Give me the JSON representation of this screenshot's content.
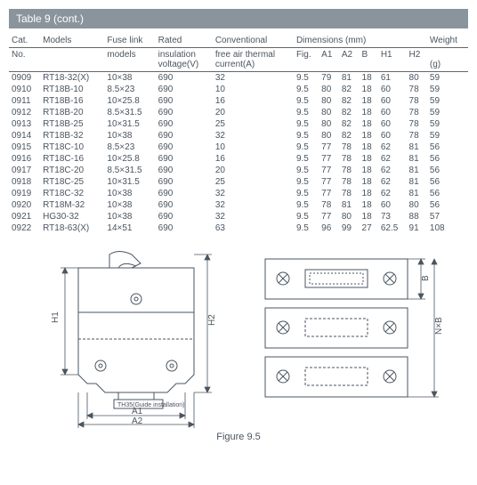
{
  "title": "Table 9 (cont.)",
  "caption": "Figure 9.5",
  "headers": {
    "cat": "Cat.",
    "no": "No.",
    "models": "Models",
    "fuse": "Fuse link",
    "fuse2": "models",
    "rated": "Rated",
    "rated2": "insulation",
    "rated3": "voltage(V)",
    "conv": "Conventional",
    "conv2": "free air thermal",
    "conv3": "current(A)",
    "dims": "Dimensions (mm)",
    "fig": "Fig.",
    "a1": "A1",
    "a2": "A2",
    "b": "B",
    "h1": "H1",
    "h2": "H2",
    "weight": "Weight",
    "weight2": "(g)"
  },
  "rows": [
    [
      "0909",
      "RT18-32(X)",
      "10×38",
      "690",
      "32",
      "9.5",
      "79",
      "81",
      "18",
      "61",
      "80",
      "59"
    ],
    [
      "0910",
      "RT18B-10",
      "8.5×23",
      "690",
      "10",
      "9.5",
      "80",
      "82",
      "18",
      "60",
      "78",
      "59"
    ],
    [
      "0911",
      "RT18B-16",
      "10×25.8",
      "690",
      "16",
      "9.5",
      "80",
      "82",
      "18",
      "60",
      "78",
      "59"
    ],
    [
      "0912",
      "RT18B-20",
      "8.5×31.5",
      "690",
      "20",
      "9.5",
      "80",
      "82",
      "18",
      "60",
      "78",
      "59"
    ],
    [
      "0913",
      "RT18B-25",
      "10×31.5",
      "690",
      "25",
      "9.5",
      "80",
      "82",
      "18",
      "60",
      "78",
      "59"
    ],
    [
      "0914",
      "RT18B-32",
      "10×38",
      "690",
      "32",
      "9.5",
      "80",
      "82",
      "18",
      "60",
      "78",
      "59"
    ],
    [
      "0915",
      "RT18C-10",
      "8.5×23",
      "690",
      "10",
      "9.5",
      "77",
      "78",
      "18",
      "62",
      "81",
      "56"
    ],
    [
      "0916",
      "RT18C-16",
      "10×25.8",
      "690",
      "16",
      "9.5",
      "77",
      "78",
      "18",
      "62",
      "81",
      "56"
    ],
    [
      "0917",
      "RT18C-20",
      "8.5×31.5",
      "690",
      "20",
      "9.5",
      "77",
      "78",
      "18",
      "62",
      "81",
      "56"
    ],
    [
      "0918",
      "RT18C-25",
      "10×31.5",
      "690",
      "25",
      "9.5",
      "77",
      "78",
      "18",
      "62",
      "81",
      "56"
    ],
    [
      "0919",
      "RT18C-32",
      "10×38",
      "690",
      "32",
      "9.5",
      "77",
      "78",
      "18",
      "62",
      "81",
      "56"
    ],
    [
      "0920",
      "RT18M-32",
      "10×38",
      "690",
      "32",
      "9.5",
      "78",
      "81",
      "18",
      "60",
      "80",
      "56"
    ],
    [
      "0921",
      "HG30-32",
      "10×38",
      "690",
      "32",
      "9.5",
      "77",
      "80",
      "18",
      "73",
      "88",
      "57"
    ],
    [
      "0922",
      "RT18-63(X)",
      "14×51",
      "690",
      "63",
      "9.5",
      "96",
      "99",
      "27",
      "62.5",
      "91",
      "108"
    ]
  ],
  "diagram": {
    "labels": {
      "h1": "H1",
      "h2": "H2",
      "a1": "A1",
      "a2": "A2",
      "b": "B",
      "nb": "N×B",
      "guide": "TH35(Guide installation)"
    },
    "stroke": "#4a5560",
    "fill": "#fff",
    "left_w": 230,
    "left_h": 200,
    "right_w": 210,
    "right_h": 180
  }
}
